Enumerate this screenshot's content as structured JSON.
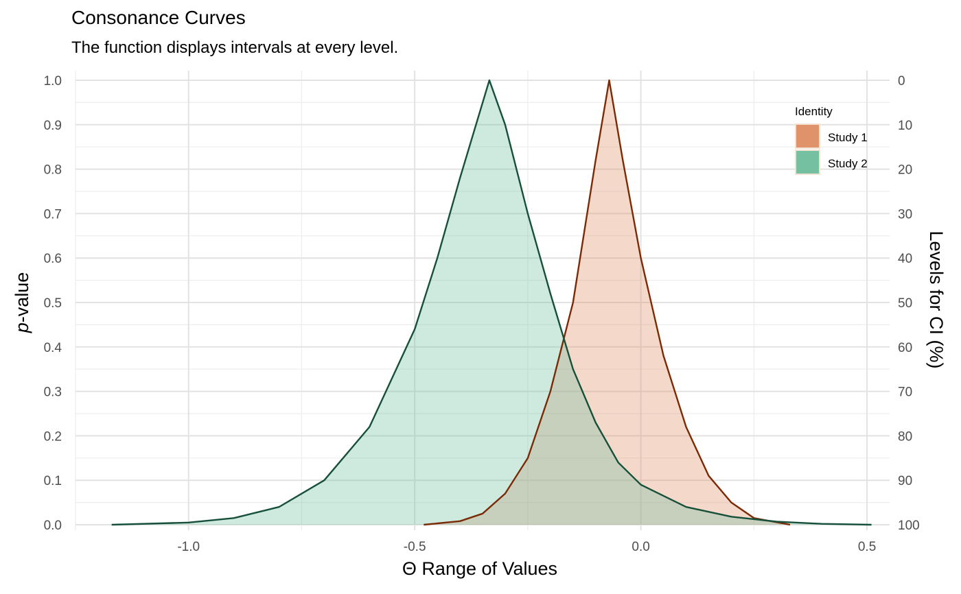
{
  "chart_data": {
    "type": "area",
    "title": "Consonance Curves",
    "subtitle": "The function displays intervals at every level.",
    "xlabel": "Θ Range of Values",
    "ylabel": "p-value",
    "ylabel_italic_part": "p",
    "ylabel_rest": "-value",
    "y2label": "Levels for CI (%)",
    "xlim": [
      -1.25,
      0.55
    ],
    "ylim": [
      0,
      1
    ],
    "x_ticks": [
      -1.0,
      -0.5,
      0.0,
      0.5
    ],
    "x_tick_labels": [
      "-1.0",
      "-0.5",
      "0.0",
      "0.5"
    ],
    "y_ticks": [
      0,
      0.1,
      0.2,
      0.3,
      0.4,
      0.5,
      0.6,
      0.7,
      0.8,
      0.9,
      1.0
    ],
    "y_tick_labels": [
      "0.0",
      "0.1",
      "0.2",
      "0.3",
      "0.4",
      "0.5",
      "0.6",
      "0.7",
      "0.8",
      "0.9",
      "1.0"
    ],
    "y2_ticks": [
      0,
      0.1,
      0.2,
      0.3,
      0.4,
      0.5,
      0.6,
      0.7,
      0.8,
      0.9,
      1.0
    ],
    "y2_tick_labels": [
      "100",
      "90",
      "80",
      "70",
      "60",
      "50",
      "40",
      "30",
      "20",
      "10",
      "0"
    ],
    "grid": true,
    "legend": {
      "title": "Identity",
      "position": "top-right",
      "entries": [
        "Study 1",
        "Study 2"
      ]
    },
    "series": [
      {
        "name": "Study 1",
        "fill": "#e0936b",
        "line": "#7a2a05",
        "x": [
          -0.48,
          -0.4,
          -0.35,
          -0.3,
          -0.25,
          -0.2,
          -0.15,
          -0.1,
          -0.07,
          -0.04,
          0.0,
          0.05,
          0.1,
          0.15,
          0.2,
          0.25,
          0.33
        ],
        "y": [
          0.0,
          0.008,
          0.025,
          0.07,
          0.15,
          0.3,
          0.5,
          0.82,
          1.0,
          0.82,
          0.6,
          0.38,
          0.22,
          0.11,
          0.05,
          0.015,
          0.0
        ]
      },
      {
        "name": "Study 2",
        "fill": "#74c0a0",
        "line": "#16503a",
        "x": [
          -1.17,
          -1.0,
          -0.9,
          -0.8,
          -0.7,
          -0.6,
          -0.5,
          -0.45,
          -0.4,
          -0.335,
          -0.3,
          -0.25,
          -0.2,
          -0.15,
          -0.1,
          -0.05,
          0.0,
          0.1,
          0.2,
          0.3,
          0.4,
          0.51
        ],
        "y": [
          0.0,
          0.005,
          0.015,
          0.04,
          0.1,
          0.22,
          0.44,
          0.6,
          0.78,
          1.0,
          0.9,
          0.7,
          0.52,
          0.35,
          0.23,
          0.14,
          0.09,
          0.04,
          0.018,
          0.007,
          0.002,
          0.0
        ]
      }
    ]
  }
}
